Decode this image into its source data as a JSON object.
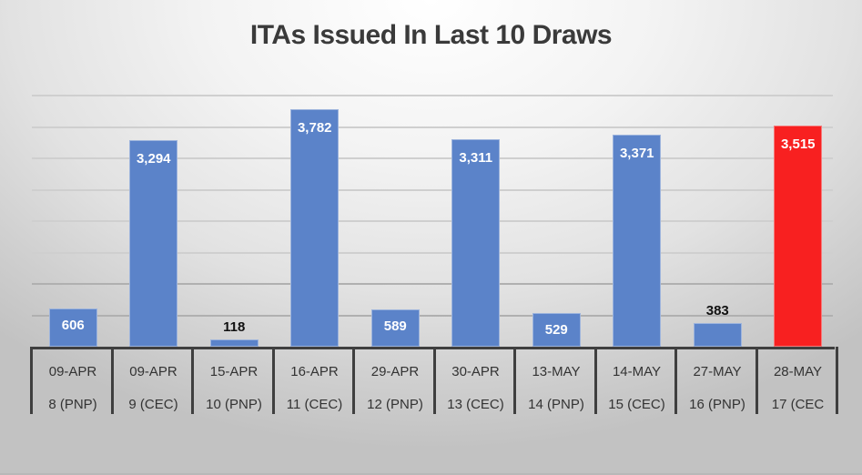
{
  "chart_data": {
    "type": "bar",
    "title": "ITAs Issued In Last 10 Draws",
    "xlabel": "",
    "ylabel": "",
    "ylim": [
      0,
      4000
    ],
    "grid": true,
    "gridline_step": 500,
    "legend": null,
    "categories": [
      {
        "date": "09-APR",
        "draw": "8 (PNP)"
      },
      {
        "date": "09-APR",
        "draw": "9 (CEC)"
      },
      {
        "date": "15-APR",
        "draw": "10 (PNP)"
      },
      {
        "date": "16-APR",
        "draw": "11 (CEC)"
      },
      {
        "date": "29-APR",
        "draw": "12 (PNP)"
      },
      {
        "date": "30-APR",
        "draw": "13 (CEC)"
      },
      {
        "date": "13-MAY",
        "draw": "14 (PNP)"
      },
      {
        "date": "14-MAY",
        "draw": "15 (CEC)"
      },
      {
        "date": "27-MAY",
        "draw": "16 (PNP)"
      },
      {
        "date": "28-MAY",
        "draw": "17 (CEC"
      }
    ],
    "values": [
      606,
      3294,
      118,
      3782,
      589,
      3311,
      529,
      3371,
      383,
      3515
    ],
    "labels": [
      "606",
      "3,294",
      "118",
      "3,782",
      "589",
      "3,311",
      "529",
      "3,371",
      "383",
      "3,515"
    ],
    "colors": [
      "#5b83c9",
      "#5b83c9",
      "#5b83c9",
      "#5b83c9",
      "#5b83c9",
      "#5b83c9",
      "#5b83c9",
      "#5b83c9",
      "#5b83c9",
      "#f82020"
    ],
    "highlight_index": 9
  }
}
